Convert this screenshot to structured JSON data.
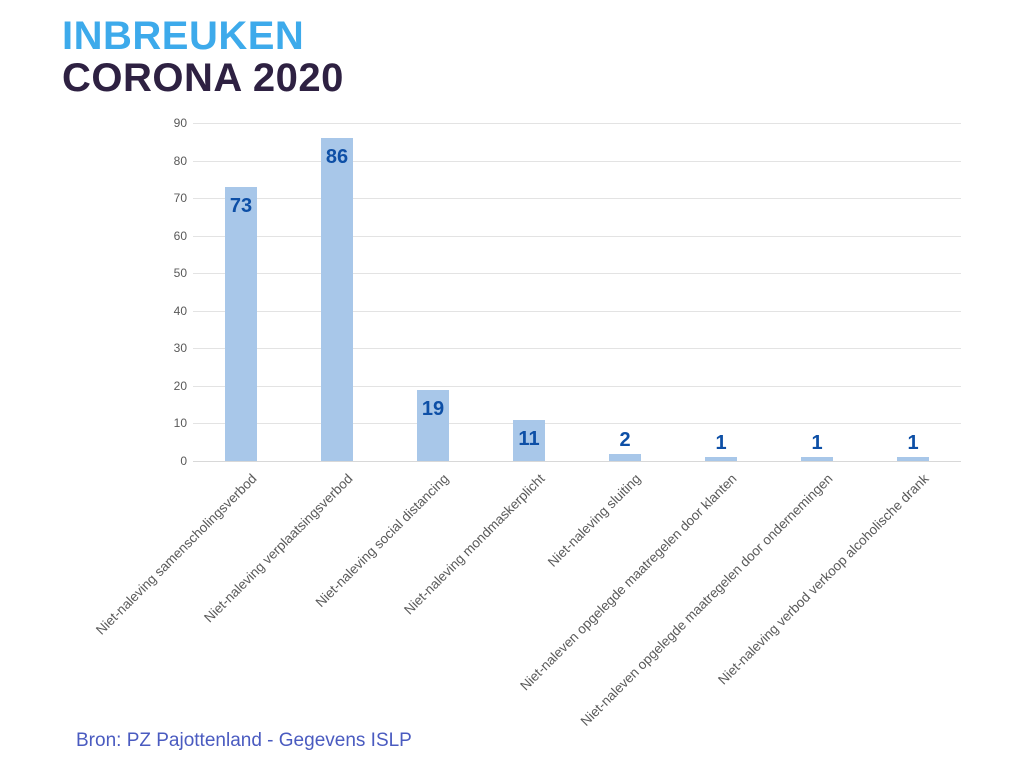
{
  "header": {
    "title_line1": "INBREUKEN",
    "title_line2": "CORONA 2020",
    "title_line1_color": "#3DAAEB",
    "title_line2_color": "#2E2142"
  },
  "footer": {
    "source_text": "Bron: PZ Pajottenland - Gegevens ISLP",
    "color": "#4A5BC0"
  },
  "chart_data": {
    "type": "bar",
    "title": "INBREUKEN CORONA 2020",
    "categories": [
      "Niet-naleving samenscholingsverbod",
      "Niet-naleving verplaatsingsverbod",
      "Niet-naleving social distancing",
      "Niet-naleving mondmaskerplicht",
      "Niet-naleving sluiting",
      "Niet-naleven opgelegde maatregelen door klanten",
      "Niet-naleven opgelegde maatregelen door ondernemingen",
      "Niet-naleving verbod verkoop alcoholische drank"
    ],
    "values": [
      73,
      86,
      19,
      11,
      2,
      1,
      1,
      1
    ],
    "xlabel": "",
    "ylabel": "",
    "ylim": [
      0,
      90
    ],
    "yticks": [
      0,
      10,
      20,
      30,
      40,
      50,
      60,
      70,
      80,
      90
    ],
    "grid": true,
    "legend": "none",
    "value_labels": true,
    "bar_color": "#A8C7E9",
    "value_label_color": "#0D4FA6",
    "axis_text_color": "#595959",
    "gridline_color": "#E3E3E3"
  }
}
